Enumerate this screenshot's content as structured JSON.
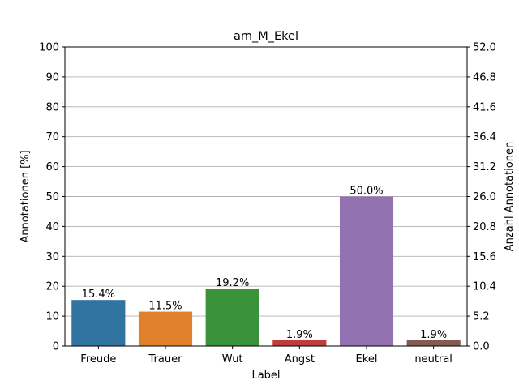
{
  "chart_data": {
    "type": "bar",
    "title": "am_M_Ekel",
    "xlabel": "Label",
    "ylabel": "Annotationen [%]",
    "ylabel_right": "Anzahl Annotationen",
    "categories": [
      "Freude",
      "Trauer",
      "Wut",
      "Angst",
      "Ekel",
      "neutral"
    ],
    "values": [
      15.4,
      11.5,
      19.2,
      1.9,
      50.0,
      1.9
    ],
    "value_labels": [
      "15.4%",
      "11.5%",
      "19.2%",
      "1.9%",
      "50.0%",
      "1.9%"
    ],
    "colors": [
      "#3274a1",
      "#e1812c",
      "#3a923a",
      "#c03d3e",
      "#9372b2",
      "#845b53"
    ],
    "ylim": [
      0,
      100
    ],
    "yticks": [
      "0",
      "10",
      "20",
      "30",
      "40",
      "50",
      "60",
      "70",
      "80",
      "90",
      "100"
    ],
    "ylim_right": [
      0,
      52
    ],
    "yticks_right": [
      "0.0",
      "5.2",
      "10.4",
      "15.6",
      "20.8",
      "26.0",
      "31.2",
      "36.4",
      "41.6",
      "46.8",
      "52.0"
    ],
    "grid": true
  }
}
